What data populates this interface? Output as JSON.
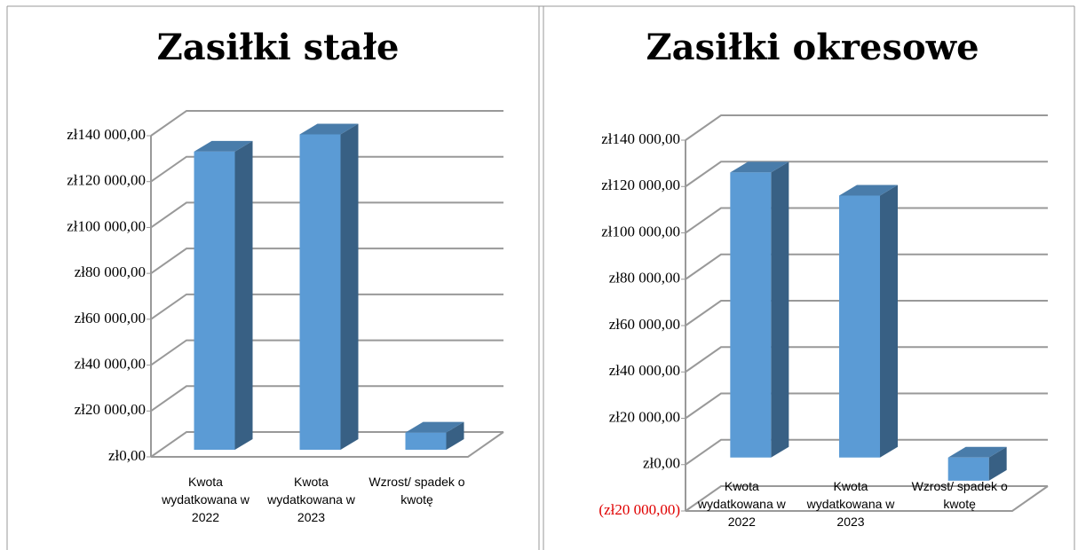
{
  "chart_data": [
    {
      "type": "bar3d",
      "title": "Zasiłki stałe",
      "categories": [
        "Kwota wydatkowana w 2022",
        "Kwota wydatkowana w 2023",
        "Wzrost/ spadek o kwotę"
      ],
      "values": [
        130000,
        137500,
        7500
      ],
      "color": "#5b9bd5",
      "ylim": [
        0,
        140000
      ],
      "yticks": [
        {
          "value": 0,
          "label": "zł0,00"
        },
        {
          "value": 20000,
          "label": "zł20 000,00"
        },
        {
          "value": 40000,
          "label": "zł40 000,00"
        },
        {
          "value": 60000,
          "label": "zł60 000,00"
        },
        {
          "value": 80000,
          "label": "zł80 000,00"
        },
        {
          "value": 100000,
          "label": "zł100 000,00"
        },
        {
          "value": 120000,
          "label": "zł120 000,00"
        },
        {
          "value": 140000,
          "label": "zł140 000,00"
        }
      ],
      "grid": true,
      "negative_label_color": "#e00000"
    },
    {
      "type": "bar3d",
      "title": "Zasiłki okresowe",
      "categories": [
        "Kwota wydatkowana w 2022",
        "Kwota wydatkowana w 2023",
        "Wzrost/ spadek o kwotę"
      ],
      "values": [
        123000,
        113000,
        -10000
      ],
      "color": "#5b9bd5",
      "ylim": [
        -20000,
        140000
      ],
      "yticks": [
        {
          "value": -20000,
          "label": "(zł20 000,00)"
        },
        {
          "value": 0,
          "label": "zł0,00"
        },
        {
          "value": 20000,
          "label": "zł20 000,00"
        },
        {
          "value": 40000,
          "label": "zł40 000,00"
        },
        {
          "value": 60000,
          "label": "zł60 000,00"
        },
        {
          "value": 80000,
          "label": "zł80 000,00"
        },
        {
          "value": 100000,
          "label": "zł100 000,00"
        },
        {
          "value": 120000,
          "label": "zł120 000,00"
        },
        {
          "value": 140000,
          "label": "zł140 000,00"
        }
      ],
      "grid": true,
      "negative_label_color": "#e00000"
    }
  ]
}
